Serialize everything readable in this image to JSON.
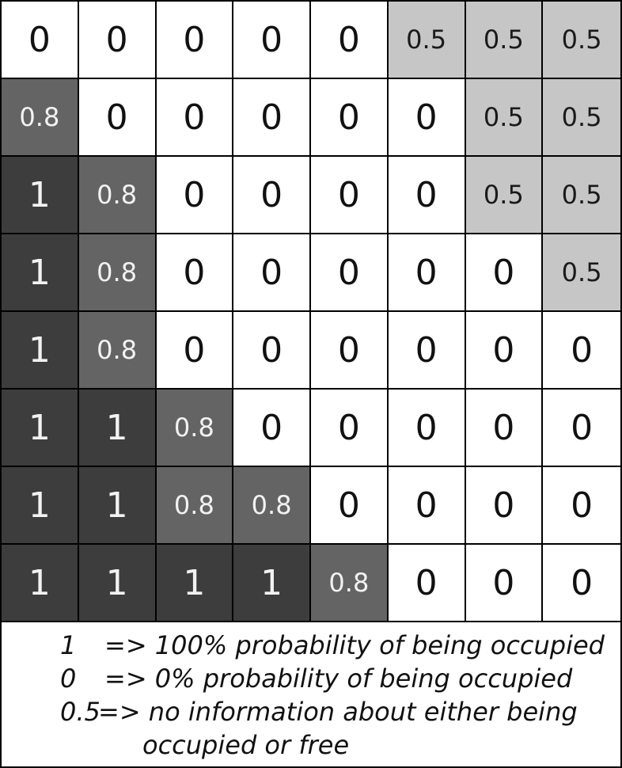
{
  "grid": {
    "rows": [
      [
        "0",
        "0",
        "0",
        "0",
        "0",
        "0.5",
        "0.5",
        "0.5"
      ],
      [
        "0.8",
        "0",
        "0",
        "0",
        "0",
        "0",
        "0.5",
        "0.5"
      ],
      [
        "1",
        "0.8",
        "0",
        "0",
        "0",
        "0",
        "0.5",
        "0.5"
      ],
      [
        "1",
        "0.8",
        "0",
        "0",
        "0",
        "0",
        "0",
        "0.5"
      ],
      [
        "1",
        "0.8",
        "0",
        "0",
        "0",
        "0",
        "0",
        "0"
      ],
      [
        "1",
        "1",
        "0.8",
        "0",
        "0",
        "0",
        "0",
        "0"
      ],
      [
        "1",
        "1",
        "0.8",
        "0.8",
        "0",
        "0",
        "0",
        "0"
      ],
      [
        "1",
        "1",
        "1",
        "1",
        "0.8",
        "0",
        "0",
        "0"
      ]
    ],
    "colors": {
      "1": "#3d3d3d",
      "0.8": "#646464",
      "0.5": "#c6c6c6",
      "0": "#ffffff"
    }
  },
  "legend": {
    "items": [
      {
        "key": "1",
        "text": "=> 100% probability of being occupied"
      },
      {
        "key": "0",
        "text": "=> 0% probability of being occupied"
      },
      {
        "key": "0.5",
        "text": "=> no information about either being"
      }
    ],
    "continuation": "occupied or free"
  }
}
